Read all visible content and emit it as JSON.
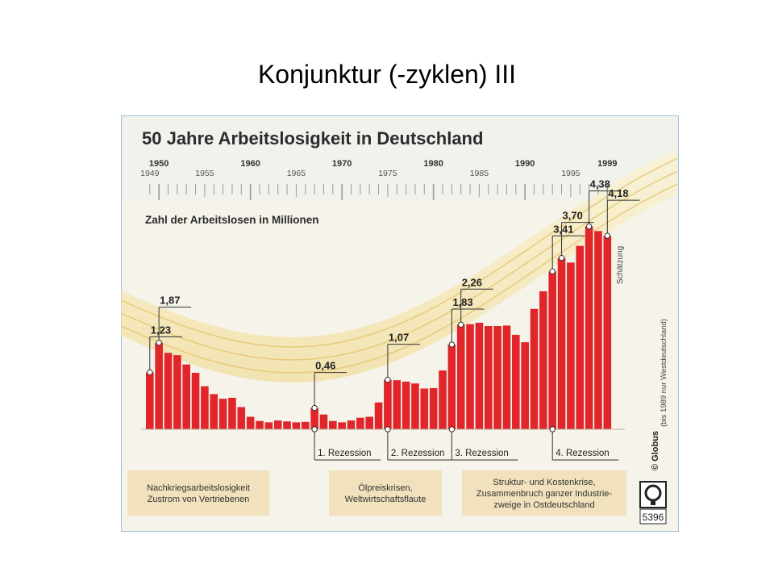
{
  "slide": {
    "title": "Konjunktur (-zyklen) III"
  },
  "chart_data": {
    "type": "bar",
    "title": "50 Jahre Arbeitslosigkeit in Deutschland",
    "ylabel": "Zahl der Arbeitslosen in Millionen",
    "x": [
      1949,
      1950,
      1951,
      1952,
      1953,
      1954,
      1955,
      1956,
      1957,
      1958,
      1959,
      1960,
      1961,
      1962,
      1963,
      1964,
      1965,
      1966,
      1967,
      1968,
      1969,
      1970,
      1971,
      1972,
      1973,
      1974,
      1975,
      1976,
      1977,
      1978,
      1979,
      1980,
      1981,
      1982,
      1983,
      1984,
      1985,
      1986,
      1987,
      1988,
      1989,
      1990,
      1991,
      1992,
      1993,
      1994,
      1995,
      1996,
      1997,
      1998,
      1999
    ],
    "values": [
      1.23,
      1.87,
      1.65,
      1.6,
      1.4,
      1.22,
      0.93,
      0.76,
      0.66,
      0.68,
      0.48,
      0.27,
      0.18,
      0.15,
      0.19,
      0.17,
      0.15,
      0.16,
      0.46,
      0.32,
      0.18,
      0.15,
      0.19,
      0.25,
      0.27,
      0.58,
      1.07,
      1.06,
      1.03,
      0.99,
      0.88,
      0.89,
      1.27,
      1.83,
      2.26,
      2.27,
      2.3,
      2.23,
      2.23,
      2.24,
      2.04,
      1.88,
      2.6,
      2.98,
      3.41,
      3.7,
      3.6,
      3.96,
      4.38,
      4.28,
      4.18
    ],
    "ylim": [
      0,
      4.6
    ],
    "top_ticks": {
      "major": [
        "1950",
        "1960",
        "1970",
        "1980",
        "1990",
        "1999"
      ],
      "minor": [
        "1949",
        "1955",
        "1965",
        "1975",
        "1985",
        "1995"
      ]
    },
    "labels": [
      {
        "year": 1949,
        "text": "1,23"
      },
      {
        "year": 1950,
        "text": "1,87"
      },
      {
        "year": 1967,
        "text": "0,46"
      },
      {
        "year": 1975,
        "text": "1,07"
      },
      {
        "year": 1982,
        "text": "1,83"
      },
      {
        "year": 1983,
        "text": "2,26"
      },
      {
        "year": 1993,
        "text": "3,41"
      },
      {
        "year": 1994,
        "text": "3,70"
      },
      {
        "year": 1997,
        "text": "4,38"
      },
      {
        "year": 1999,
        "text": "4,18"
      }
    ],
    "recessions": [
      {
        "year": 1967,
        "text": "1. Rezession"
      },
      {
        "year": 1975,
        "text": "2. Rezession"
      },
      {
        "year": 1982,
        "text": "3. Rezession"
      },
      {
        "year": 1993,
        "text": "4. Rezession"
      }
    ],
    "estimate_label": "Schätzung",
    "periods": [
      {
        "line1": "Nachkriegsarbeitslosigkeit",
        "line2": "Zustrom von Vertriebenen",
        "line3": ""
      },
      {
        "line1": "Ölpreiskrisen,",
        "line2": "Weltwirtschaftsflaute",
        "line3": ""
      },
      {
        "line1": "Struktur- und Kostenkrise,",
        "line2": "Zusammenbruch ganzer Industrie-",
        "line3": "zweige in Ostdeutschland"
      }
    ],
    "source_note": "(bis 1989 nur Westdeutschland)",
    "source": "© Globus",
    "code": "5396",
    "colors": {
      "bar": "#e0262a",
      "background": "#f6f3ea",
      "band": "#f3e3a8",
      "box": "#f1e2bd",
      "ticks": "#9a9a9a"
    }
  }
}
